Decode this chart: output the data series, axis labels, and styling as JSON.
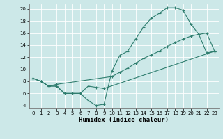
{
  "xlabel": "Humidex (Indice chaleur)",
  "bg_color": "#cce8e8",
  "grid_color": "#ffffff",
  "line_color": "#2e7d6e",
  "xlim": [
    -0.5,
    23.5
  ],
  "ylim": [
    3.5,
    20.8
  ],
  "yticks": [
    4,
    6,
    8,
    10,
    12,
    14,
    16,
    18,
    20
  ],
  "xticks": [
    0,
    1,
    2,
    3,
    4,
    5,
    6,
    7,
    8,
    9,
    10,
    11,
    12,
    13,
    14,
    15,
    16,
    17,
    18,
    19,
    20,
    21,
    22,
    23
  ],
  "line1_x": [
    0,
    1,
    2,
    3,
    4,
    5,
    6,
    7,
    8,
    9,
    10,
    11,
    12,
    13,
    14,
    15,
    16,
    17,
    18,
    19,
    20,
    21,
    22,
    23
  ],
  "line1_y": [
    8.5,
    8.0,
    7.2,
    7.2,
    6.0,
    6.0,
    6.0,
    4.8,
    4.0,
    4.2,
    9.7,
    12.3,
    13.0,
    15.0,
    17.0,
    18.5,
    19.3,
    20.2,
    20.2,
    19.8,
    17.5,
    15.8,
    12.7,
    13.0
  ],
  "line2_x": [
    0,
    1,
    2,
    3,
    4,
    5,
    6,
    7,
    8,
    9,
    23
  ],
  "line2_y": [
    8.5,
    8.0,
    7.2,
    7.2,
    6.0,
    6.0,
    6.0,
    7.2,
    7.0,
    6.8,
    13.0
  ],
  "line3_x": [
    0,
    1,
    2,
    3,
    10,
    11,
    12,
    13,
    14,
    15,
    16,
    17,
    18,
    19,
    20,
    21,
    22,
    23
  ],
  "line3_y": [
    8.5,
    8.0,
    7.2,
    7.5,
    8.8,
    9.5,
    10.2,
    11.0,
    11.8,
    12.4,
    13.0,
    13.8,
    14.4,
    15.0,
    15.5,
    15.8,
    16.0,
    13.0
  ]
}
